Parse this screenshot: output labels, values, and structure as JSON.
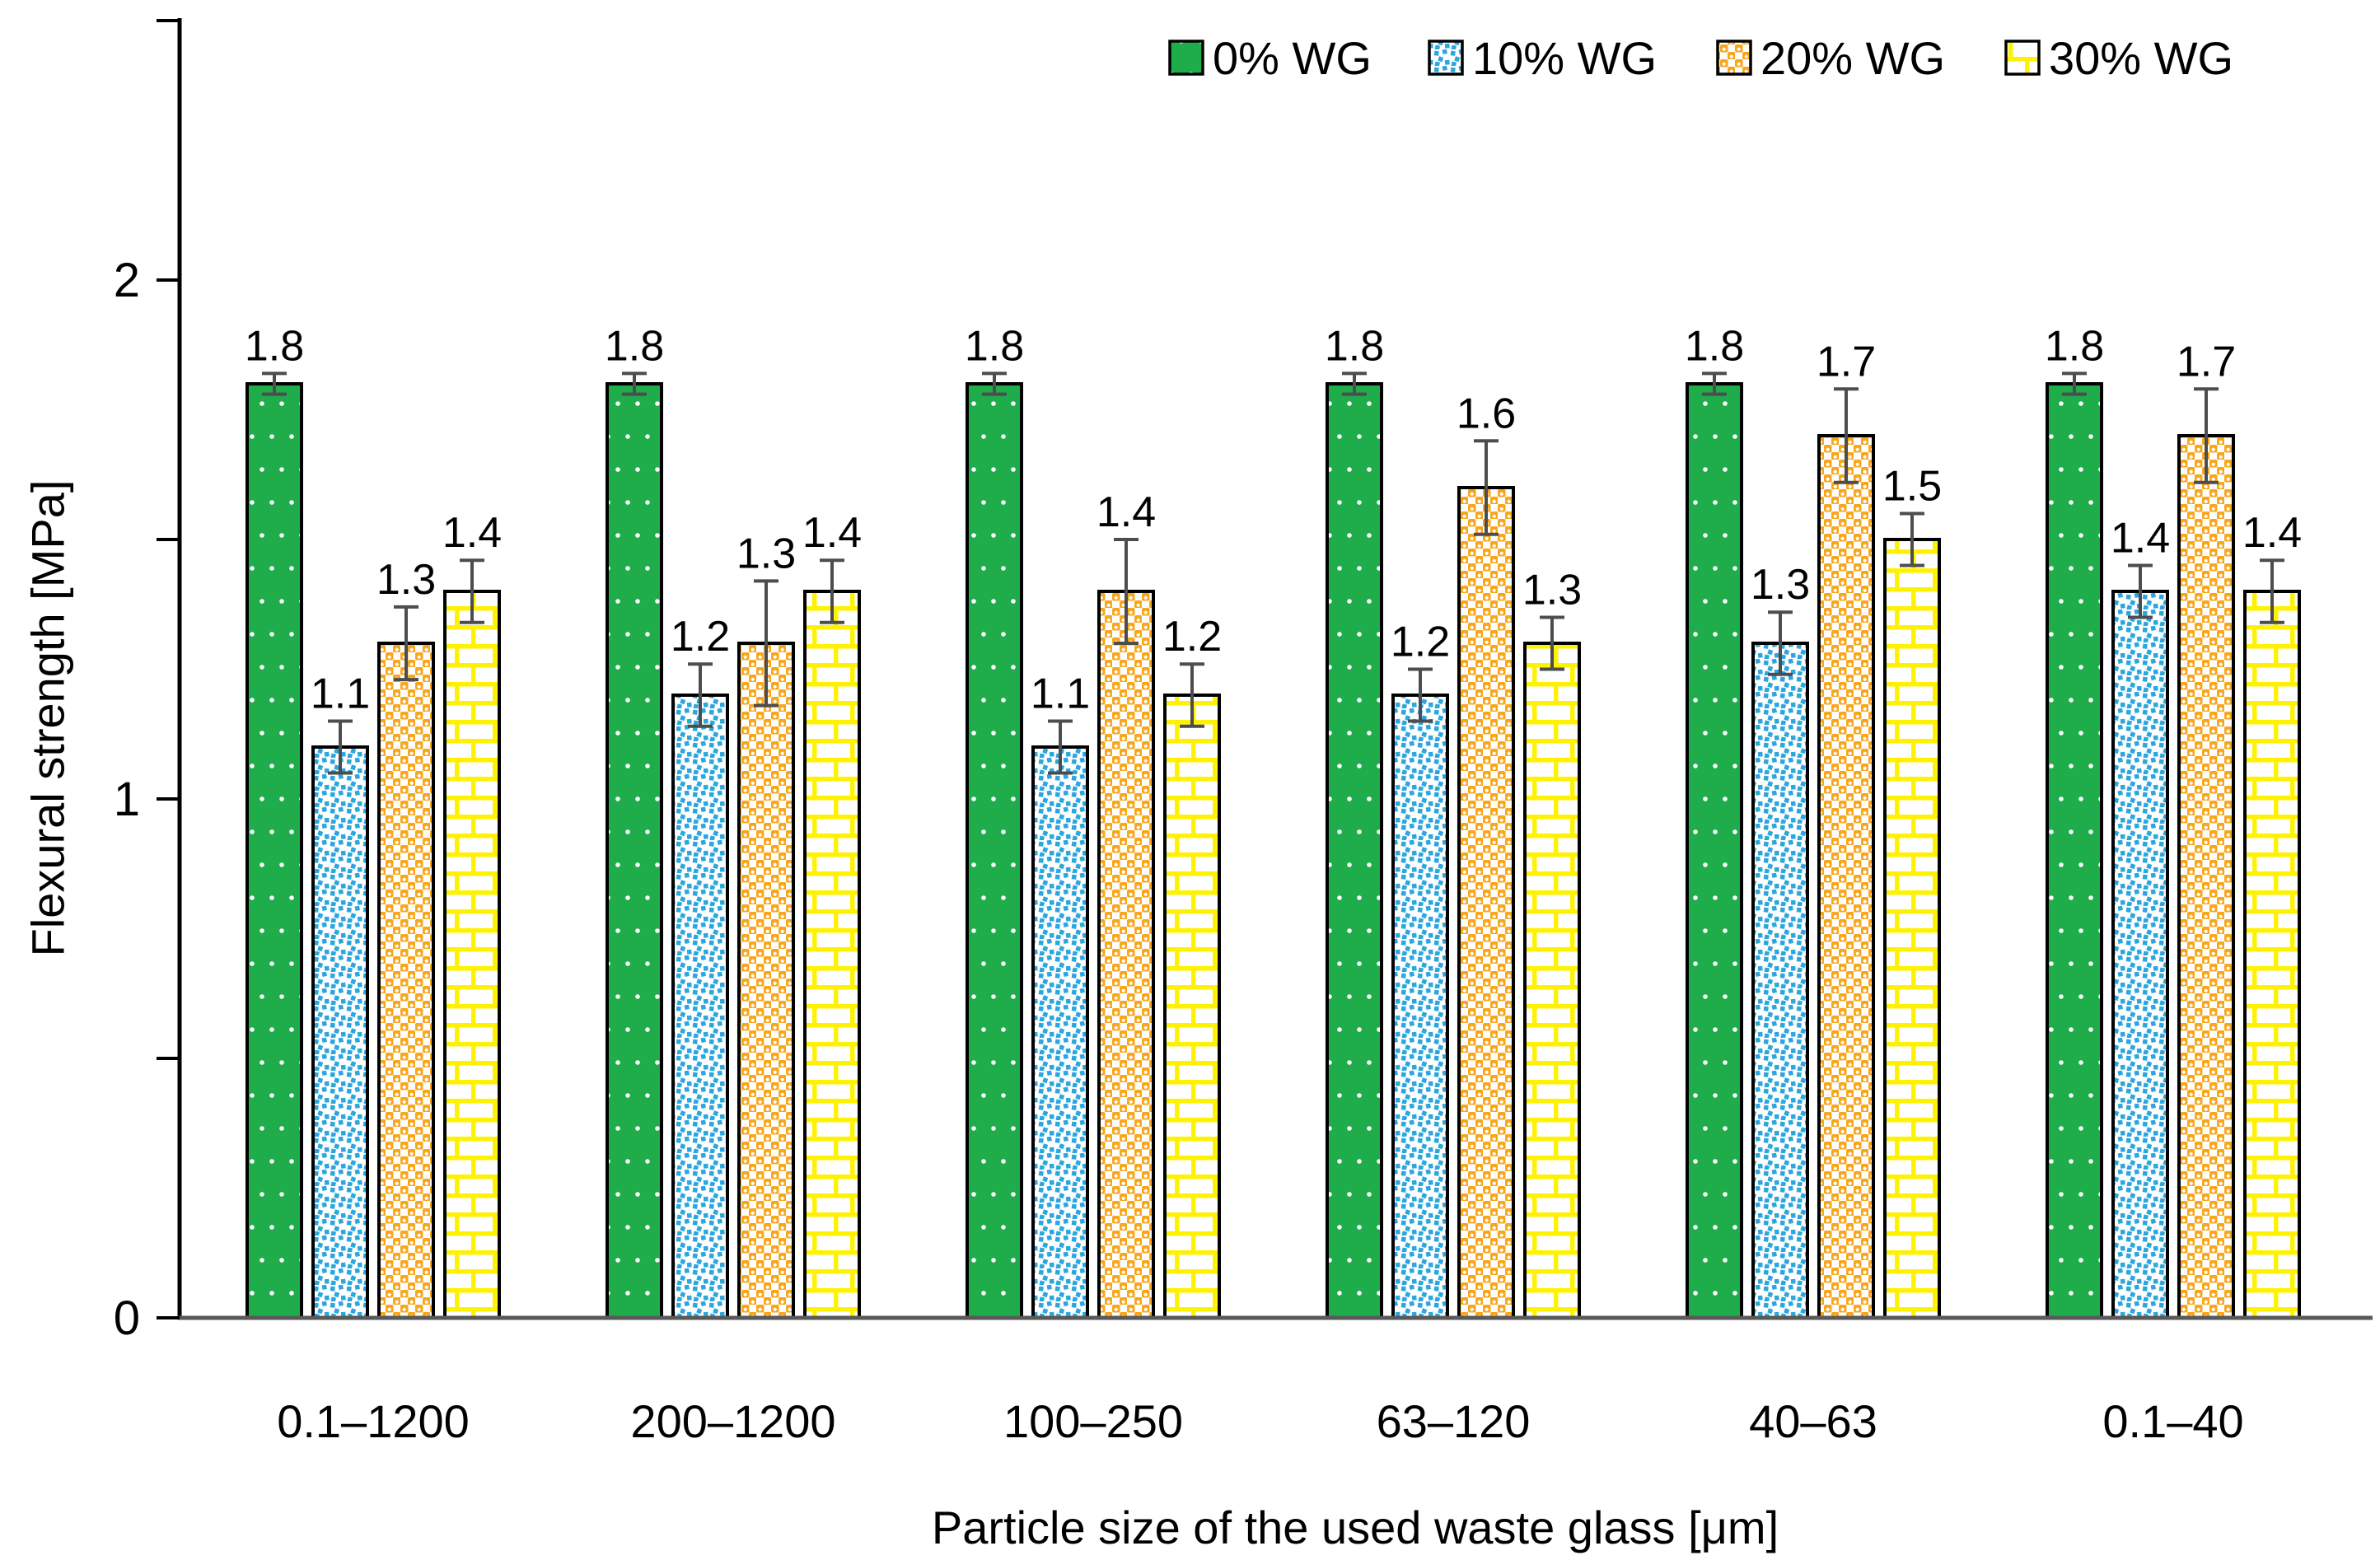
{
  "chart_data": {
    "type": "bar",
    "title": "",
    "xlabel": "Particle size of the used waste glass [μm]",
    "ylabel": "Flexural strength [MPa]",
    "ylim": [
      0,
      2.5
    ],
    "ytick_labels": [
      "0",
      "1",
      "2"
    ],
    "yticks_labeled": [
      0,
      1,
      2
    ],
    "yticks_minor": [
      0.5,
      1.5,
      2.5
    ],
    "grid": false,
    "legend_position": "top-right",
    "categories": [
      "0.1–1200",
      "200–1200",
      "100–250",
      "63–120",
      "40–63",
      "0.1–40"
    ],
    "series": [
      {
        "name": "0% WG",
        "pattern": "green-white-dots",
        "color": "#1FAD4C",
        "values": [
          1.8,
          1.8,
          1.8,
          1.8,
          1.8,
          1.8
        ],
        "errors": [
          0.02,
          0.02,
          0.02,
          0.02,
          0.02,
          0.02
        ]
      },
      {
        "name": "10% WG",
        "pattern": "blue-speckle-on-white",
        "color": "#2BA6DE",
        "values": [
          1.1,
          1.2,
          1.1,
          1.2,
          1.3,
          1.4
        ],
        "errors": [
          0.05,
          0.06,
          0.05,
          0.05,
          0.06,
          0.05
        ]
      },
      {
        "name": "20% WG",
        "pattern": "orange-checker-dots",
        "color": "#F9A61B",
        "values": [
          1.3,
          1.3,
          1.4,
          1.6,
          1.7,
          1.7
        ],
        "errors": [
          0.07,
          0.12,
          0.1,
          0.09,
          0.09,
          0.09
        ]
      },
      {
        "name": "30% WG",
        "pattern": "yellow-brick-on-white",
        "color": "#FFF200",
        "values": [
          1.4,
          1.4,
          1.2,
          1.3,
          1.5,
          1.4
        ],
        "errors": [
          0.06,
          0.06,
          0.06,
          0.05,
          0.05,
          0.06
        ]
      }
    ],
    "value_label_decimals": 1,
    "error_bar_color": "#4d4d4d",
    "bar_outline_color": "#000000",
    "axis_color": "#000000",
    "baseline_color": "#595959"
  }
}
